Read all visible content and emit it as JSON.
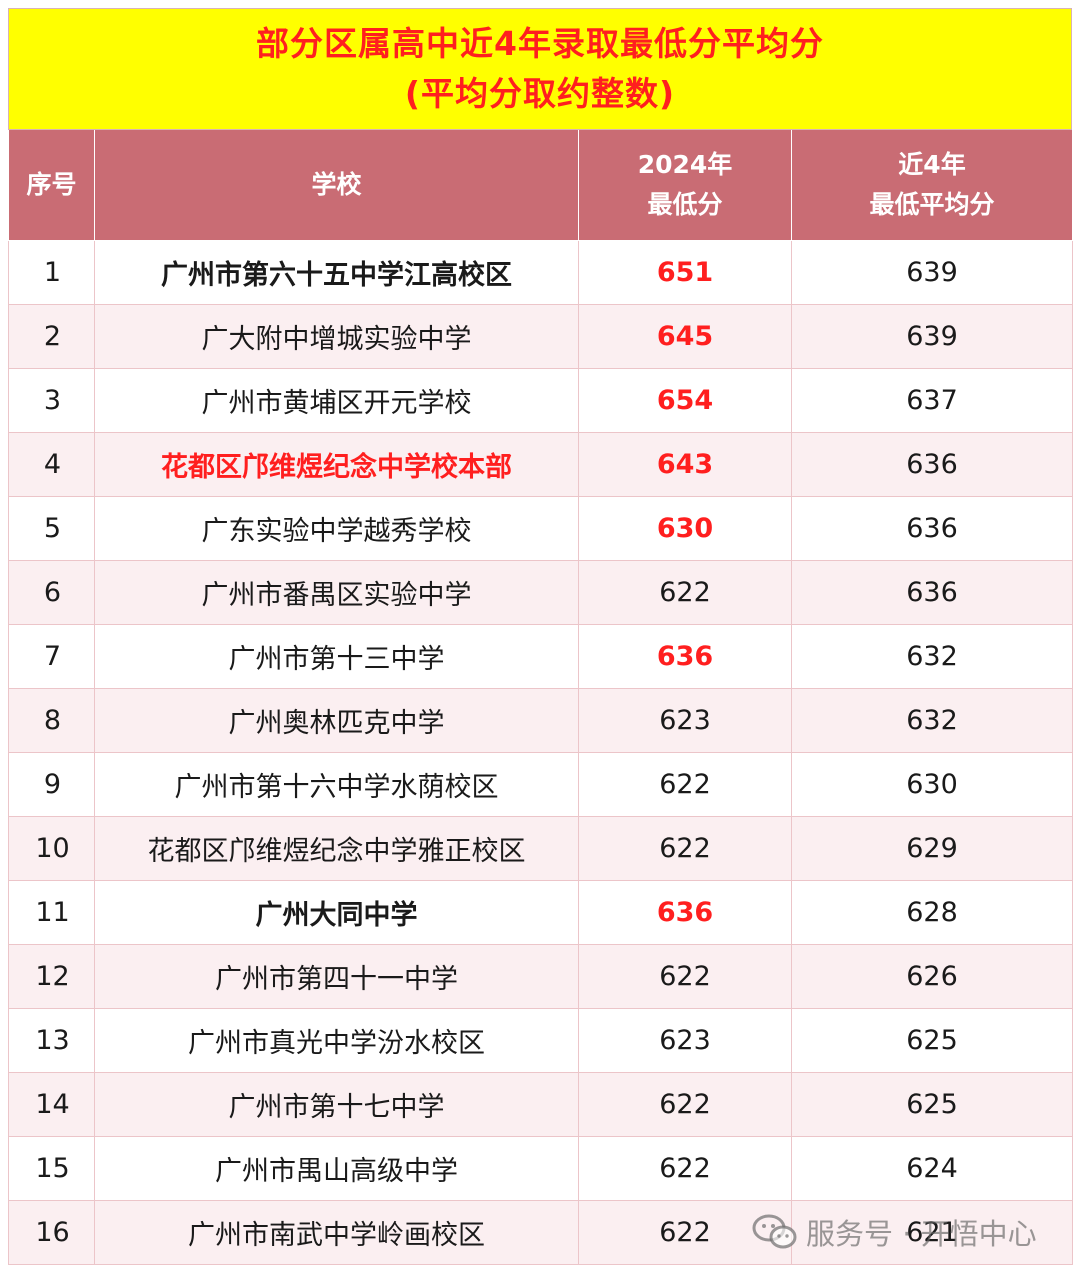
{
  "title": {
    "line1": "部分区属高中近4年录取最低分平均分",
    "line2": "(平均分取约整数)"
  },
  "columns": {
    "index": "序号",
    "school": "学校",
    "min_2024_line1": "2024年",
    "min_2024_line2": "最低分",
    "avg_4y_line1": "近4年",
    "avg_4y_line2": "最低平均分"
  },
  "rows": [
    {
      "index": "1",
      "school": "广州市第六十五中学江高校区",
      "min2024": "651",
      "avg4": "639",
      "school_style": "bold",
      "min_style": "red"
    },
    {
      "index": "2",
      "school": "广大附中增城实验中学",
      "min2024": "645",
      "avg4": "639",
      "school_style": "normal",
      "min_style": "red"
    },
    {
      "index": "3",
      "school": "广州市黄埔区开元学校",
      "min2024": "654",
      "avg4": "637",
      "school_style": "normal",
      "min_style": "red"
    },
    {
      "index": "4",
      "school": "花都区邝维煜纪念中学校本部",
      "min2024": "643",
      "avg4": "636",
      "school_style": "red",
      "min_style": "red"
    },
    {
      "index": "5",
      "school": "广东实验中学越秀学校",
      "min2024": "630",
      "avg4": "636",
      "school_style": "normal",
      "min_style": "red"
    },
    {
      "index": "6",
      "school": "广州市番禺区实验中学",
      "min2024": "622",
      "avg4": "636",
      "school_style": "normal",
      "min_style": "normal"
    },
    {
      "index": "7",
      "school": "广州市第十三中学",
      "min2024": "636",
      "avg4": "632",
      "school_style": "normal",
      "min_style": "red"
    },
    {
      "index": "8",
      "school": "广州奥林匹克中学",
      "min2024": "623",
      "avg4": "632",
      "school_style": "normal",
      "min_style": "normal"
    },
    {
      "index": "9",
      "school": "广州市第十六中学水荫校区",
      "min2024": "622",
      "avg4": "630",
      "school_style": "normal",
      "min_style": "normal"
    },
    {
      "index": "10",
      "school": "花都区邝维煜纪念中学雅正校区",
      "min2024": "622",
      "avg4": "629",
      "school_style": "normal",
      "min_style": "normal"
    },
    {
      "index": "11",
      "school": "广州大同中学",
      "min2024": "636",
      "avg4": "628",
      "school_style": "bold",
      "min_style": "red"
    },
    {
      "index": "12",
      "school": "广州市第四十一中学",
      "min2024": "622",
      "avg4": "626",
      "school_style": "normal",
      "min_style": "normal"
    },
    {
      "index": "13",
      "school": "广州市真光中学汾水校区",
      "min2024": "623",
      "avg4": "625",
      "school_style": "normal",
      "min_style": "normal"
    },
    {
      "index": "14",
      "school": "广州市第十七中学",
      "min2024": "622",
      "avg4": "625",
      "school_style": "normal",
      "min_style": "normal"
    },
    {
      "index": "15",
      "school": "广州市禺山高级中学",
      "min2024": "622",
      "avg4": "624",
      "school_style": "normal",
      "min_style": "normal"
    },
    {
      "index": "16",
      "school": "广州市南武中学岭画校区",
      "min2024": "622",
      "avg4": "621",
      "school_style": "normal",
      "min_style": "normal"
    }
  ],
  "watermark": {
    "text": "服务号 · 开悟中心",
    "icon": "wechat-icon"
  },
  "colors": {
    "title_bg": "#ffff00",
    "title_text": "#ff1f1f",
    "header_bg": "#c96c74",
    "header_text": "#ffffff",
    "stripe_bg": "#fbeff1",
    "highlight_text": "#ff1f1f"
  }
}
